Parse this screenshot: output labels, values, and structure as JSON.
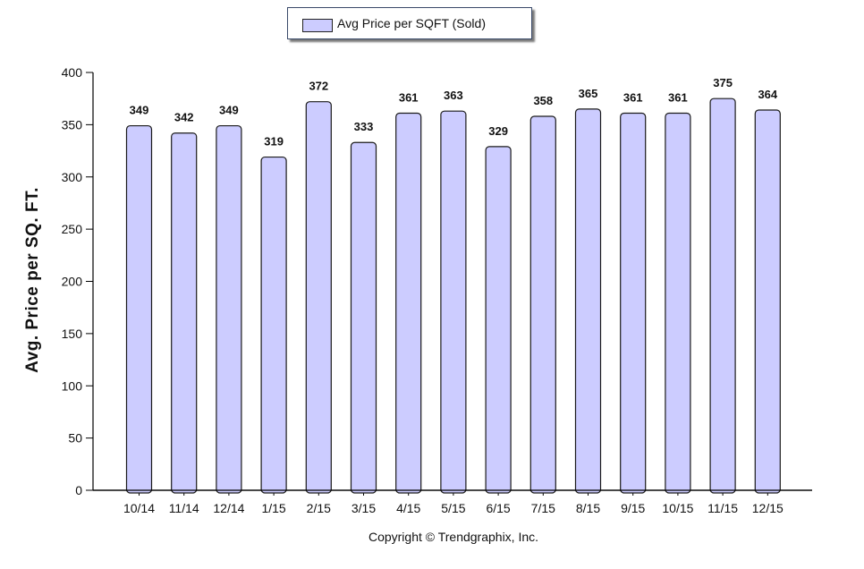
{
  "legend": {
    "label": "Avg Price per SQFT (Sold)",
    "color": "#ccccff"
  },
  "copyright": "Copyright © Trendgraphix, Inc.",
  "chart_data": {
    "type": "bar",
    "title": "",
    "xlabel": "",
    "ylabel": "Avg. Price per SQ. FT.",
    "ylim": [
      0,
      400
    ],
    "yticks": [
      0,
      50,
      100,
      150,
      200,
      250,
      300,
      350,
      400
    ],
    "grid": false,
    "legend_position": "top-center",
    "categories": [
      "10/14",
      "11/14",
      "12/14",
      "1/15",
      "2/15",
      "3/15",
      "4/15",
      "5/15",
      "6/15",
      "7/15",
      "8/15",
      "9/15",
      "10/15",
      "11/15",
      "12/15"
    ],
    "series": [
      {
        "name": "Avg Price per SQFT (Sold)",
        "color": "#ccccff",
        "values": [
          349,
          342,
          349,
          319,
          372,
          333,
          361,
          363,
          329,
          358,
          365,
          361,
          361,
          375,
          364
        ]
      }
    ]
  }
}
